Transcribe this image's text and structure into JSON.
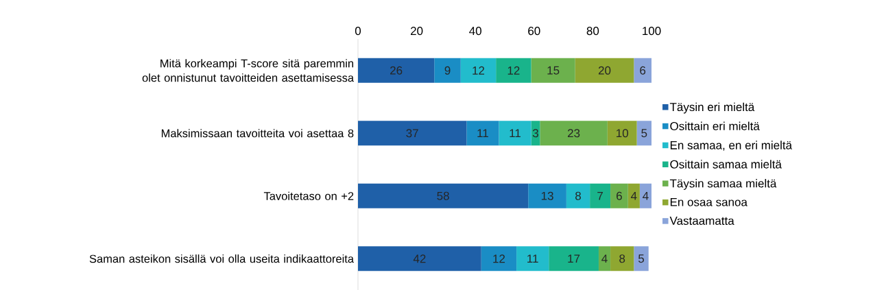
{
  "chart_data": {
    "type": "bar",
    "orientation": "horizontal",
    "stacked": true,
    "data_labels": true,
    "legend": "right",
    "categories": [
      "Mitä korkeampi T-score  sitä paremmin olet onnistunut tavoitteiden asettamisessa",
      "Maksimissaan tavoitteita voi asettaa 8",
      "Tavoitetaso on +2",
      "Saman asteikon sisällä voi olla useita indikaattoreita"
    ],
    "xlim": [
      0,
      100
    ],
    "xticks": [
      0,
      20,
      40,
      60,
      80,
      100
    ],
    "series": [
      {
        "name": "Täysin eri mieltä",
        "color": "#1f60a8",
        "values": [
          26,
          37,
          58,
          42
        ]
      },
      {
        "name": "Osittain eri mieltä",
        "color": "#1a8dc5",
        "values": [
          9,
          11,
          13,
          12
        ]
      },
      {
        "name": "En samaa, en eri mieltä",
        "color": "#22bccc",
        "values": [
          12,
          11,
          8,
          11
        ]
      },
      {
        "name": "Osittain samaa mieltä",
        "color": "#19b48b",
        "values": [
          12,
          3,
          7,
          17
        ]
      },
      {
        "name": "Täysin samaa mieltä",
        "color": "#6cb14d",
        "values": [
          15,
          23,
          6,
          4
        ]
      },
      {
        "name": "En osaa sanoa",
        "color": "#8fa731",
        "values": [
          20,
          10,
          4,
          8
        ]
      },
      {
        "name": "Vastaamatta",
        "color": "#8aa4da",
        "values": [
          6,
          5,
          4,
          5
        ]
      }
    ]
  }
}
